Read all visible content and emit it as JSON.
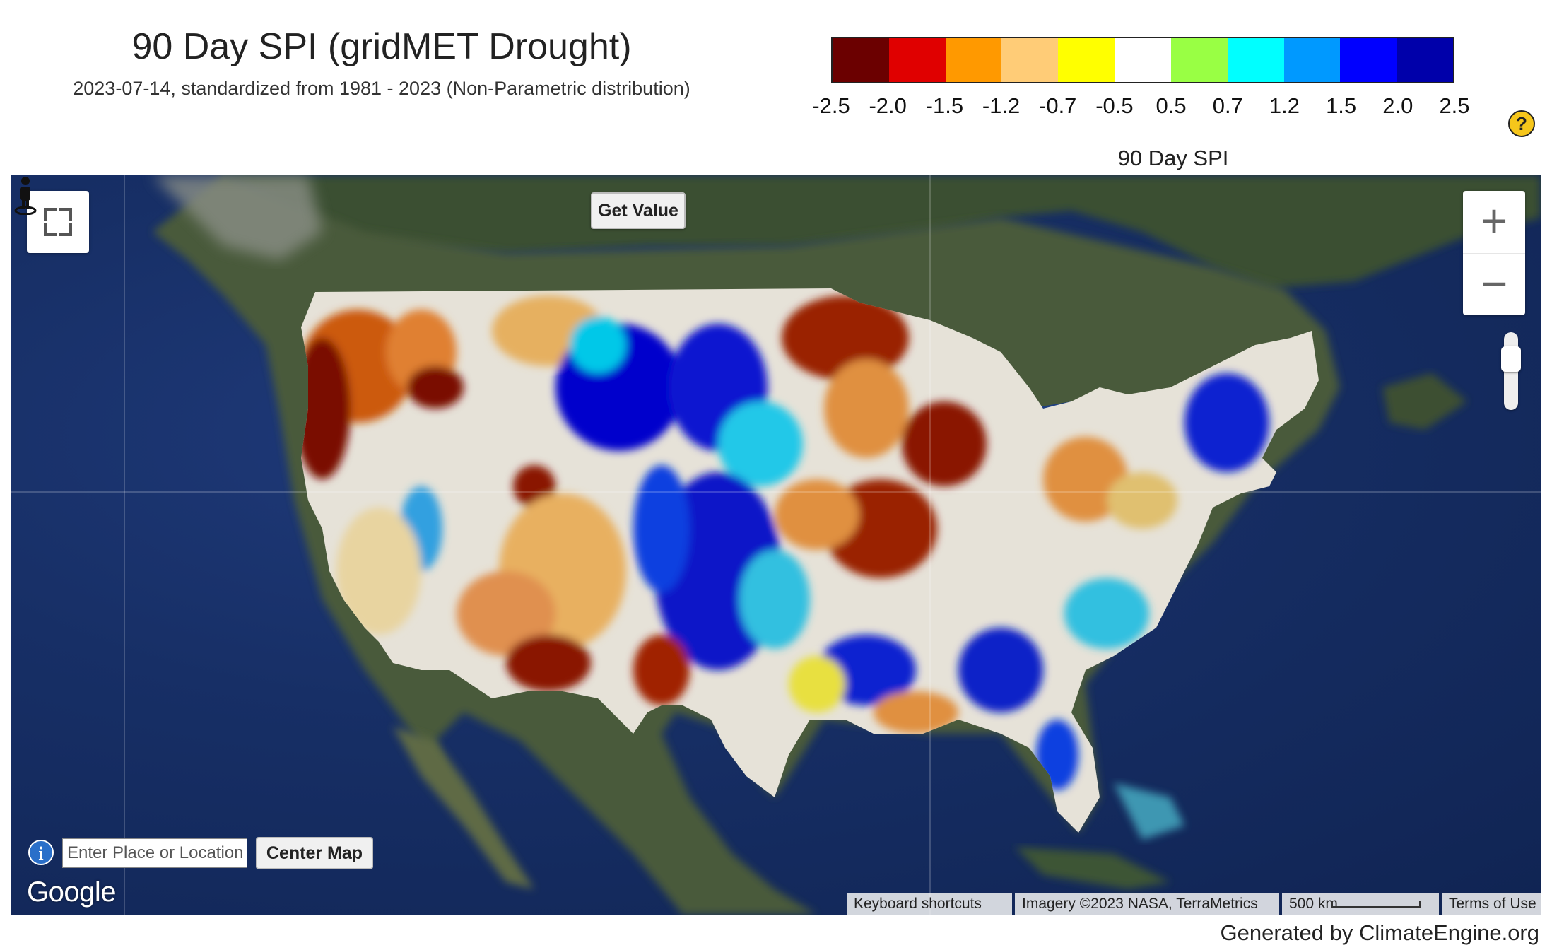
{
  "header": {
    "title": "90 Day SPI (gridMET Drought)",
    "subtitle": "2023-07-14, standardized from 1981 - 2023 (Non-Parametric distribution)"
  },
  "legend": {
    "label": "90 Day SPI",
    "colors": [
      "#6b0000",
      "#e00000",
      "#ff9900",
      "#ffcc77",
      "#ffff00",
      "#ffffff",
      "#99ff44",
      "#00ffff",
      "#0099ff",
      "#0000ff",
      "#0000aa"
    ],
    "ticks": [
      "-2.5",
      "-2.0",
      "-1.5",
      "-1.2",
      "-0.7",
      "-0.5",
      "0.5",
      "0.7",
      "1.2",
      "1.5",
      "2.0",
      "2.5"
    ]
  },
  "controls": {
    "get_value_label": "Get Value",
    "search_placeholder": "Enter Place or Location",
    "center_map_label": "Center Map",
    "zoom_in": "+",
    "zoom_out": "−",
    "help": "?",
    "info": "i"
  },
  "map": {
    "logo": "Google",
    "attribution": {
      "keyboard_shortcuts": "Keyboard shortcuts",
      "imagery": "Imagery ©2023 NASA, TerraMetrics",
      "scale": "500 km",
      "terms": "Terms of Use"
    },
    "icons": [
      "fullscreen-icon",
      "info-icon",
      "pegman-icon",
      "help-icon"
    ]
  },
  "footer": {
    "generated_by": "Generated by ClimateEngine.org"
  }
}
